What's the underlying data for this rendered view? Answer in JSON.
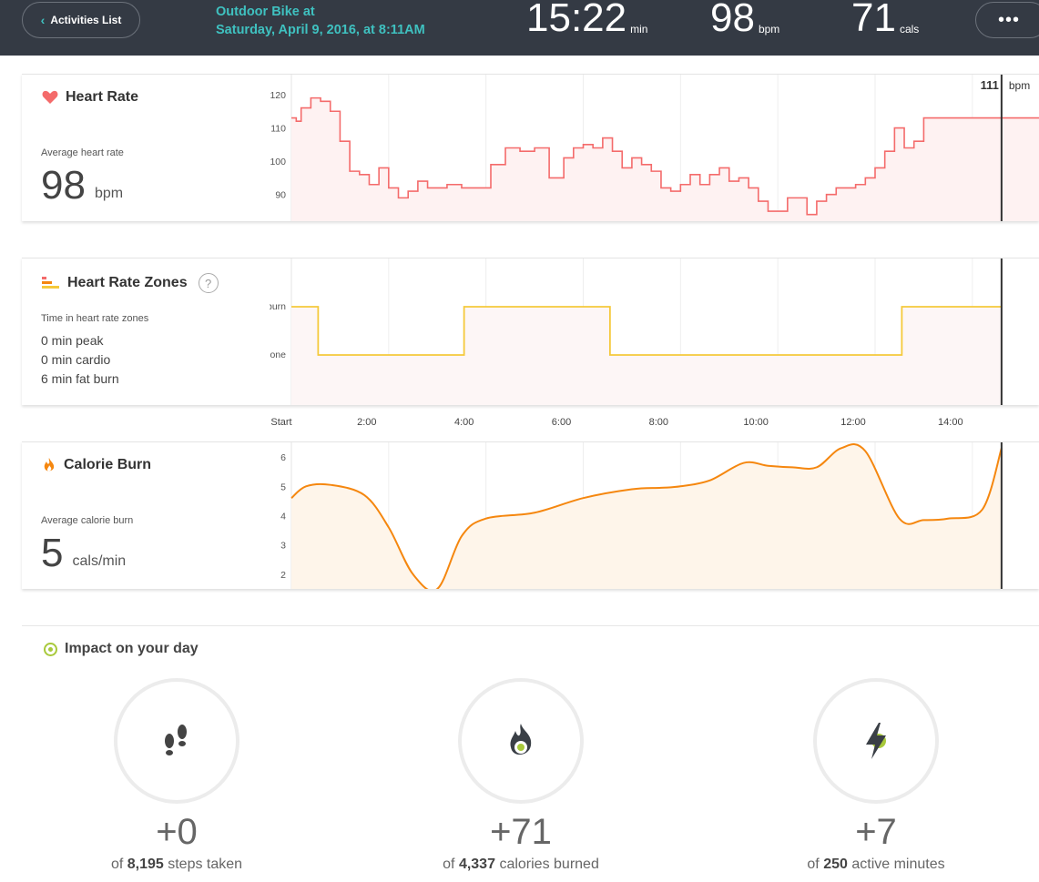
{
  "header": {
    "back_label": "Activities List",
    "title_line1": "Outdoor Bike at",
    "title_line2": "Saturday, April 9, 2016, at 8:11AM",
    "duration": "15:22",
    "duration_unit": "min",
    "bpm": "98",
    "bpm_unit": "bpm",
    "cals": "71",
    "cals_unit": "cals",
    "more_label": "•••"
  },
  "colors": {
    "header_bg": "#343a44",
    "accent_teal": "#3fc1c0",
    "heart_line": "#f46b6b",
    "zone_line": "#f5c93b",
    "calorie_line": "#f5870f",
    "impact_green": "#a8c93b"
  },
  "heart_rate": {
    "title": "Heart Rate",
    "avg_label": "Average heart rate",
    "avg_value": "98",
    "avg_unit": "bpm",
    "cursor_value": "111",
    "cursor_unit": "bpm",
    "icon": "heart-icon"
  },
  "zones": {
    "title": "Heart Rate Zones",
    "help": "?",
    "sub": "Time in heart rate zones",
    "peak": "0 min peak",
    "cardio": "0 min cardio",
    "fatburn": "6 min fat burn",
    "icon": "zones-bars-icon"
  },
  "calorie": {
    "title": "Calorie Burn",
    "avg_label": "Average calorie burn",
    "avg_value": "5",
    "avg_unit": "cals/min",
    "icon": "flame-icon"
  },
  "chart_data": [
    {
      "type": "line",
      "name": "heart-rate",
      "x_unit": "min",
      "xlim": [
        0,
        15.37
      ],
      "ylim": [
        82,
        126
      ],
      "yticks": [
        "120",
        "110",
        "100",
        "90"
      ],
      "cursor_x": 14.6,
      "x": [
        0,
        0.1,
        0.2,
        0.4,
        0.6,
        0.8,
        1.0,
        1.2,
        1.4,
        1.6,
        1.8,
        2.0,
        2.2,
        2.4,
        2.6,
        2.8,
        3.0,
        3.2,
        3.5,
        3.8,
        4.1,
        4.4,
        4.7,
        5.0,
        5.3,
        5.6,
        5.8,
        6.0,
        6.2,
        6.4,
        6.6,
        6.8,
        7.0,
        7.2,
        7.4,
        7.6,
        7.8,
        8.0,
        8.2,
        8.4,
        8.6,
        8.8,
        9.0,
        9.2,
        9.4,
        9.6,
        9.8,
        10.0,
        10.2,
        10.4,
        10.6,
        10.8,
        11.0,
        11.2,
        11.4,
        11.6,
        11.8,
        12.0,
        12.2,
        12.4,
        12.6,
        12.8,
        13.0,
        13.2,
        13.4,
        13.6,
        13.8,
        14.0,
        14.2,
        14.4,
        14.6,
        14.8,
        15.0,
        15.37
      ],
      "y": [
        113,
        112,
        116,
        119,
        118,
        115,
        106,
        97,
        96,
        93,
        98,
        92,
        89,
        91,
        94,
        92,
        92,
        93,
        92,
        92,
        99,
        104,
        103,
        104,
        95,
        101,
        104,
        105,
        104,
        107,
        103,
        98,
        101,
        99,
        97,
        92,
        91,
        93,
        96,
        93,
        96,
        98,
        94,
        95,
        92,
        88,
        85,
        85,
        89,
        89,
        84,
        88,
        90,
        92,
        92,
        93,
        95,
        98,
        103,
        110,
        104,
        106,
        113,
        113,
        113,
        113,
        113,
        113,
        113,
        113,
        113,
        113,
        113,
        113
      ]
    },
    {
      "type": "line",
      "name": "heart-rate-zones",
      "x_unit": "min",
      "xlim": [
        0,
        15.37
      ],
      "yticks": [
        "fat burn",
        "out of zone"
      ],
      "cursor_x": 14.6,
      "x": [
        0,
        0.55,
        0.55,
        3.55,
        3.55,
        6.55,
        6.55,
        12.55,
        12.55,
        14.6
      ],
      "y": [
        "fat burn",
        "fat burn",
        "out of zone",
        "out of zone",
        "fat burn",
        "fat burn",
        "out of zone",
        "out of zone",
        "fat burn",
        "fat burn"
      ]
    },
    {
      "type": "area",
      "name": "calorie-burn",
      "x_unit": "min",
      "xlim": [
        0,
        15.37
      ],
      "ylim": [
        1.5,
        6.5
      ],
      "yticks": [
        "6",
        "5",
        "4",
        "3",
        "2"
      ],
      "cursor_x": 14.6,
      "x": [
        0,
        0.3,
        0.8,
        1.5,
        2.0,
        2.5,
        3.0,
        3.5,
        4.0,
        5.0,
        6.0,
        7.0,
        7.6,
        8.0,
        8.6,
        9.3,
        9.8,
        10.3,
        10.8,
        11.3,
        11.8,
        12.5,
        13.0,
        13.5,
        14.2,
        14.6
      ],
      "y": [
        4.6,
        5.0,
        5.05,
        4.7,
        3.6,
        2.0,
        1.5,
        3.3,
        3.9,
        4.1,
        4.6,
        4.9,
        4.95,
        5.0,
        5.2,
        5.8,
        5.7,
        5.65,
        5.65,
        6.3,
        6.2,
        3.9,
        3.85,
        3.9,
        4.2,
        6.3
      ]
    }
  ],
  "time_axis": [
    "Start",
    "2:00",
    "4:00",
    "6:00",
    "8:00",
    "10:00",
    "12:00",
    "14:00"
  ],
  "impact": {
    "title": "Impact on your day",
    "steps": {
      "value": "+0",
      "of": "of",
      "total": "8,195",
      "label": "steps taken",
      "icon": "footprints-icon"
    },
    "calories": {
      "value": "+71",
      "of": "of",
      "total": "4,337",
      "label": "calories burned",
      "icon": "flame-icon"
    },
    "active": {
      "value": "+7",
      "of": "of",
      "total": "250",
      "label": "active minutes",
      "icon": "lightning-icon"
    }
  }
}
